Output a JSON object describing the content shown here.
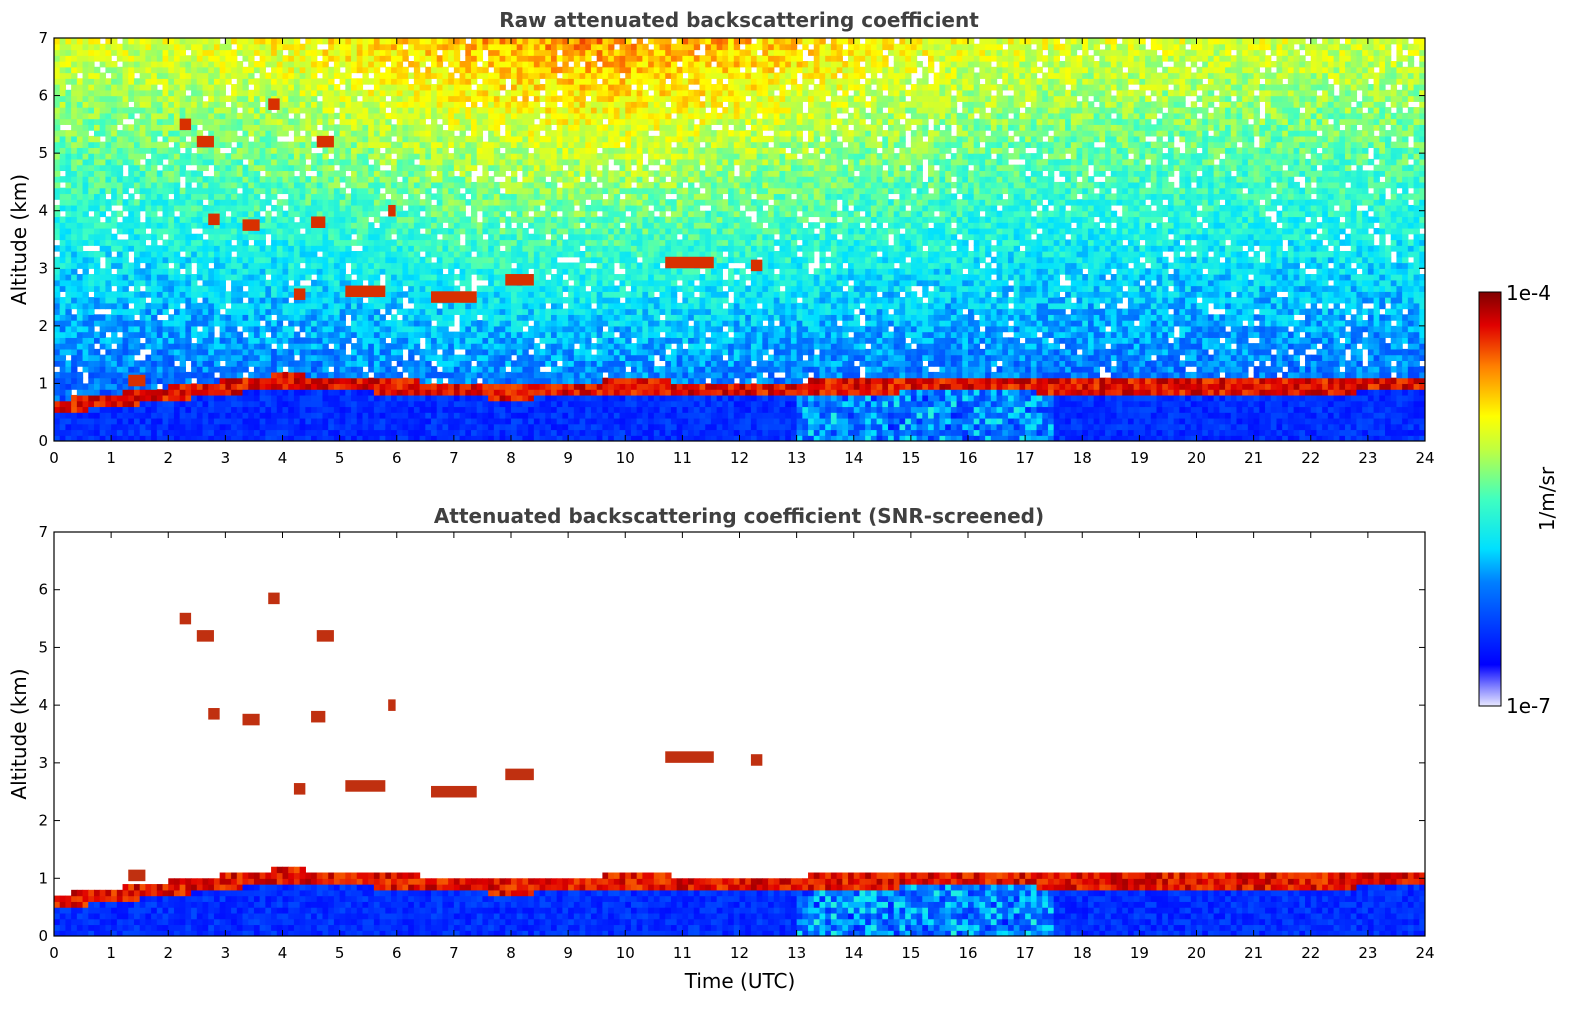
{
  "chart_data": [
    {
      "type": "heatmap",
      "title": "Raw attenuated backscattering coefficient",
      "xlabel": "",
      "ylabel": "Altitude (km)",
      "xlim": [
        0,
        24
      ],
      "ylim": [
        0,
        7
      ],
      "xticks": [
        "0",
        "1",
        "2",
        "3",
        "4",
        "5",
        "6",
        "7",
        "8",
        "9",
        "10",
        "11",
        "12",
        "13",
        "14",
        "15",
        "16",
        "17",
        "18",
        "19",
        "20",
        "21",
        "22",
        "23",
        "24"
      ],
      "yticks": [
        "0",
        "1",
        "2",
        "3",
        "4",
        "5",
        "6",
        "7"
      ],
      "grid": false,
      "features": {
        "boundary_layer_top_km": [
          {
            "t": 0,
            "z": 0.6
          },
          {
            "t": 4,
            "z": 1.05
          },
          {
            "t": 6,
            "z": 0.95
          },
          {
            "t": 8,
            "z": 0.85
          },
          {
            "t": 10,
            "z": 0.95
          },
          {
            "t": 12,
            "z": 0.9
          },
          {
            "t": 14,
            "z": 0.95
          },
          {
            "t": 16,
            "z": 1.0
          },
          {
            "t": 18,
            "z": 0.95
          },
          {
            "t": 20,
            "z": 0.95
          },
          {
            "t": 22,
            "z": 0.95
          },
          {
            "t": 24,
            "z": 1.0
          }
        ],
        "cloud_patches": [
          {
            "t0": 1.3,
            "t1": 1.6,
            "z": 1.05
          },
          {
            "t0": 2.2,
            "t1": 2.4,
            "z": 5.5
          },
          {
            "t0": 2.5,
            "t1": 2.8,
            "z": 5.2
          },
          {
            "t0": 2.7,
            "t1": 2.9,
            "z": 3.85
          },
          {
            "t0": 3.3,
            "t1": 3.6,
            "z": 3.75
          },
          {
            "t0": 3.75,
            "t1": 3.95,
            "z": 5.85
          },
          {
            "t0": 4.2,
            "t1": 4.4,
            "z": 2.55
          },
          {
            "t0": 4.5,
            "t1": 4.75,
            "z": 3.8
          },
          {
            "t0": 4.6,
            "t1": 4.9,
            "z": 5.2
          },
          {
            "t0": 5.1,
            "t1": 5.8,
            "z": 2.6
          },
          {
            "t0": 5.85,
            "t1": 5.98,
            "z": 4.0
          },
          {
            "t0": 6.6,
            "t1": 7.4,
            "z": 2.5
          },
          {
            "t0": 7.9,
            "t1": 8.4,
            "z": 2.8
          },
          {
            "t0": 10.7,
            "t1": 11.55,
            "z": 3.1
          },
          {
            "t0": 12.2,
            "t1": 12.4,
            "z": 3.05
          }
        ]
      }
    },
    {
      "type": "heatmap",
      "title": "Attenuated backscattering coefficient (SNR-screened)",
      "xlabel": "Time (UTC)",
      "ylabel": "Altitude (km)",
      "xlim": [
        0,
        24
      ],
      "ylim": [
        0,
        7
      ],
      "xticks": [
        "0",
        "1",
        "2",
        "3",
        "4",
        "5",
        "6",
        "7",
        "8",
        "9",
        "10",
        "11",
        "12",
        "13",
        "14",
        "15",
        "16",
        "17",
        "18",
        "19",
        "20",
        "21",
        "22",
        "23",
        "24"
      ],
      "yticks": [
        "0",
        "1",
        "2",
        "3",
        "4",
        "5",
        "6",
        "7"
      ],
      "grid": false
    }
  ],
  "colorbar": {
    "label": "1/m/sr",
    "max_label": "1e-4",
    "min_label": "1e-7",
    "scale": "log",
    "range": [
      1e-07,
      0.0001
    ],
    "colormap": "jet"
  }
}
